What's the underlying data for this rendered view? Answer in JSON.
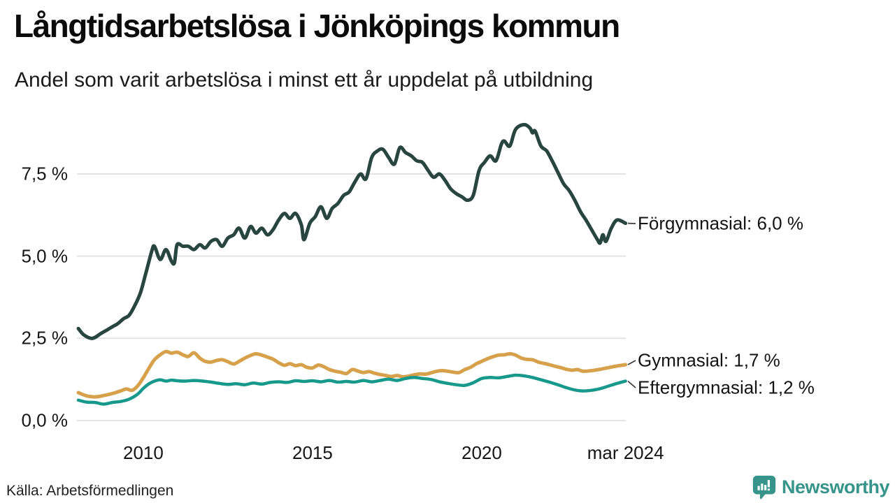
{
  "footer": {
    "brand": "Newsworthy"
  },
  "colors": {
    "grid": "#e4e4e4",
    "text": "#111111",
    "brand_teal": "#37948a",
    "connector": "#3a3a3a"
  },
  "chart_data": {
    "type": "line",
    "title": "Långtidsarbetslösa i Jönköpings kommun",
    "subtitle": "Andel som varit arbetslösa i minst ett år uppdelat på utbildning",
    "source": "Källa: Arbetsförmedlingen",
    "legend_position": "labels-at-line-ends-right",
    "grid": "horizontal",
    "x_axis": {
      "domain": [
        2008.08,
        2024.3
      ],
      "ticks": [
        {
          "label": "2010",
          "year": 2010
        },
        {
          "label": "2015",
          "year": 2015
        },
        {
          "label": "2020",
          "year": 2020
        },
        {
          "label": "mar 2024",
          "year": 2024.25
        }
      ]
    },
    "y_axis": {
      "unit": "%",
      "domain": [
        0,
        9.2
      ],
      "ticks": [
        {
          "label": "0,0 %",
          "value": 0
        },
        {
          "label": "2,5 %",
          "value": 2.5
        },
        {
          "label": "5,0 %",
          "value": 5
        },
        {
          "label": "7,5 %",
          "value": 7.5
        }
      ]
    },
    "series": [
      {
        "id": "forgymnasial",
        "name": "Förgymnasial",
        "end_label": "Förgymnasial: 6,0 %",
        "end_value": "6,0 %",
        "color": "#28453e",
        "points": [
          [
            2008.08,
            2.8
          ],
          [
            2008.25,
            2.6
          ],
          [
            2008.5,
            2.5
          ],
          [
            2008.75,
            2.65
          ],
          [
            2008.92,
            2.75
          ],
          [
            2009.08,
            2.85
          ],
          [
            2009.25,
            2.95
          ],
          [
            2009.42,
            3.1
          ],
          [
            2009.58,
            3.2
          ],
          [
            2009.75,
            3.5
          ],
          [
            2009.92,
            3.9
          ],
          [
            2010.08,
            4.5
          ],
          [
            2010.25,
            5.15
          ],
          [
            2010.33,
            5.3
          ],
          [
            2010.5,
            4.9
          ],
          [
            2010.67,
            5.2
          ],
          [
            2010.83,
            4.85
          ],
          [
            2010.92,
            4.8
          ],
          [
            2011.0,
            5.35
          ],
          [
            2011.17,
            5.3
          ],
          [
            2011.33,
            5.3
          ],
          [
            2011.5,
            5.2
          ],
          [
            2011.67,
            5.35
          ],
          [
            2011.83,
            5.25
          ],
          [
            2012.0,
            5.45
          ],
          [
            2012.17,
            5.5
          ],
          [
            2012.33,
            5.3
          ],
          [
            2012.5,
            5.55
          ],
          [
            2012.67,
            5.65
          ],
          [
            2012.83,
            5.85
          ],
          [
            2013.0,
            5.55
          ],
          [
            2013.17,
            5.9
          ],
          [
            2013.33,
            5.7
          ],
          [
            2013.5,
            5.85
          ],
          [
            2013.67,
            5.65
          ],
          [
            2013.83,
            5.8
          ],
          [
            2014.0,
            6.1
          ],
          [
            2014.17,
            6.3
          ],
          [
            2014.33,
            6.15
          ],
          [
            2014.5,
            6.3
          ],
          [
            2014.67,
            5.95
          ],
          [
            2014.75,
            5.5
          ],
          [
            2014.92,
            6.0
          ],
          [
            2015.08,
            6.2
          ],
          [
            2015.25,
            6.5
          ],
          [
            2015.42,
            6.15
          ],
          [
            2015.58,
            6.45
          ],
          [
            2015.75,
            6.6
          ],
          [
            2015.92,
            6.85
          ],
          [
            2016.08,
            6.95
          ],
          [
            2016.25,
            7.25
          ],
          [
            2016.42,
            7.5
          ],
          [
            2016.58,
            7.35
          ],
          [
            2016.75,
            8.0
          ],
          [
            2016.92,
            8.2
          ],
          [
            2017.08,
            8.25
          ],
          [
            2017.25,
            8.0
          ],
          [
            2017.42,
            7.8
          ],
          [
            2017.58,
            8.3
          ],
          [
            2017.75,
            8.15
          ],
          [
            2017.92,
            8.05
          ],
          [
            2018.08,
            7.9
          ],
          [
            2018.25,
            7.85
          ],
          [
            2018.42,
            7.6
          ],
          [
            2018.58,
            7.4
          ],
          [
            2018.75,
            7.5
          ],
          [
            2018.92,
            7.3
          ],
          [
            2019.08,
            7.05
          ],
          [
            2019.25,
            6.9
          ],
          [
            2019.42,
            6.8
          ],
          [
            2019.58,
            6.7
          ],
          [
            2019.75,
            6.85
          ],
          [
            2019.92,
            7.6
          ],
          [
            2020.08,
            7.85
          ],
          [
            2020.25,
            8.05
          ],
          [
            2020.42,
            7.9
          ],
          [
            2020.58,
            8.4
          ],
          [
            2020.67,
            8.5
          ],
          [
            2020.83,
            8.35
          ],
          [
            2021.0,
            8.85
          ],
          [
            2021.25,
            9.0
          ],
          [
            2021.42,
            8.9
          ],
          [
            2021.5,
            8.75
          ],
          [
            2021.58,
            8.8
          ],
          [
            2021.75,
            8.35
          ],
          [
            2021.92,
            8.2
          ],
          [
            2022.08,
            7.9
          ],
          [
            2022.25,
            7.55
          ],
          [
            2022.42,
            7.2
          ],
          [
            2022.58,
            7.0
          ],
          [
            2022.75,
            6.7
          ],
          [
            2022.92,
            6.35
          ],
          [
            2023.08,
            6.1
          ],
          [
            2023.25,
            5.8
          ],
          [
            2023.42,
            5.5
          ],
          [
            2023.5,
            5.4
          ],
          [
            2023.58,
            5.65
          ],
          [
            2023.67,
            5.45
          ],
          [
            2023.83,
            5.85
          ],
          [
            2024.0,
            6.1
          ],
          [
            2024.25,
            6.0
          ]
        ]
      },
      {
        "id": "gymnasial",
        "name": "Gymnasial",
        "end_label": "Gymnasial: 1,7 %",
        "end_value": "1,7 %",
        "color": "#d7a14c",
        "points": [
          [
            2008.08,
            0.85
          ],
          [
            2008.33,
            0.75
          ],
          [
            2008.58,
            0.72
          ],
          [
            2008.83,
            0.76
          ],
          [
            2009.08,
            0.82
          ],
          [
            2009.33,
            0.9
          ],
          [
            2009.5,
            0.96
          ],
          [
            2009.67,
            0.92
          ],
          [
            2009.83,
            1.05
          ],
          [
            2010.0,
            1.3
          ],
          [
            2010.17,
            1.6
          ],
          [
            2010.33,
            1.85
          ],
          [
            2010.5,
            2.0
          ],
          [
            2010.67,
            2.1
          ],
          [
            2010.83,
            2.05
          ],
          [
            2011.0,
            2.08
          ],
          [
            2011.17,
            2.0
          ],
          [
            2011.33,
            1.95
          ],
          [
            2011.5,
            2.06
          ],
          [
            2011.67,
            1.9
          ],
          [
            2011.83,
            1.8
          ],
          [
            2012.0,
            1.78
          ],
          [
            2012.17,
            1.83
          ],
          [
            2012.33,
            1.85
          ],
          [
            2012.5,
            1.79
          ],
          [
            2012.67,
            1.72
          ],
          [
            2012.83,
            1.8
          ],
          [
            2013.0,
            1.9
          ],
          [
            2013.17,
            1.98
          ],
          [
            2013.33,
            2.03
          ],
          [
            2013.5,
            1.99
          ],
          [
            2013.67,
            1.93
          ],
          [
            2013.83,
            1.87
          ],
          [
            2014.0,
            1.76
          ],
          [
            2014.17,
            1.68
          ],
          [
            2014.33,
            1.73
          ],
          [
            2014.5,
            1.67
          ],
          [
            2014.67,
            1.7
          ],
          [
            2014.83,
            1.62
          ],
          [
            2015.0,
            1.6
          ],
          [
            2015.17,
            1.69
          ],
          [
            2015.33,
            1.64
          ],
          [
            2015.5,
            1.55
          ],
          [
            2015.67,
            1.5
          ],
          [
            2015.83,
            1.47
          ],
          [
            2016.0,
            1.43
          ],
          [
            2016.17,
            1.55
          ],
          [
            2016.33,
            1.51
          ],
          [
            2016.5,
            1.46
          ],
          [
            2016.67,
            1.49
          ],
          [
            2016.83,
            1.44
          ],
          [
            2017.0,
            1.4
          ],
          [
            2017.17,
            1.37
          ],
          [
            2017.33,
            1.34
          ],
          [
            2017.5,
            1.37
          ],
          [
            2017.67,
            1.33
          ],
          [
            2017.83,
            1.35
          ],
          [
            2018.0,
            1.39
          ],
          [
            2018.17,
            1.42
          ],
          [
            2018.33,
            1.41
          ],
          [
            2018.5,
            1.45
          ],
          [
            2018.67,
            1.5
          ],
          [
            2018.83,
            1.52
          ],
          [
            2019.0,
            1.5
          ],
          [
            2019.17,
            1.47
          ],
          [
            2019.33,
            1.46
          ],
          [
            2019.5,
            1.55
          ],
          [
            2019.67,
            1.62
          ],
          [
            2019.83,
            1.72
          ],
          [
            2020.0,
            1.8
          ],
          [
            2020.17,
            1.88
          ],
          [
            2020.33,
            1.94
          ],
          [
            2020.5,
            1.99
          ],
          [
            2020.67,
            2.0
          ],
          [
            2020.83,
            2.03
          ],
          [
            2021.0,
            1.99
          ],
          [
            2021.17,
            1.9
          ],
          [
            2021.33,
            1.86
          ],
          [
            2021.5,
            1.85
          ],
          [
            2021.67,
            1.78
          ],
          [
            2021.83,
            1.74
          ],
          [
            2022.0,
            1.7
          ],
          [
            2022.17,
            1.65
          ],
          [
            2022.33,
            1.61
          ],
          [
            2022.5,
            1.56
          ],
          [
            2022.67,
            1.53
          ],
          [
            2022.83,
            1.55
          ],
          [
            2023.0,
            1.5
          ],
          [
            2023.25,
            1.52
          ],
          [
            2023.5,
            1.56
          ],
          [
            2023.75,
            1.61
          ],
          [
            2024.0,
            1.66
          ],
          [
            2024.25,
            1.7
          ]
        ]
      },
      {
        "id": "eftergymnasial",
        "name": "Eftergymnasial",
        "end_label": "Eftergymnasial: 1,2 %",
        "end_value": "1,2 %",
        "color": "#16998b",
        "points": [
          [
            2008.08,
            0.62
          ],
          [
            2008.33,
            0.56
          ],
          [
            2008.58,
            0.55
          ],
          [
            2008.83,
            0.5
          ],
          [
            2009.08,
            0.55
          ],
          [
            2009.33,
            0.58
          ],
          [
            2009.58,
            0.65
          ],
          [
            2009.83,
            0.8
          ],
          [
            2010.0,
            0.98
          ],
          [
            2010.17,
            1.12
          ],
          [
            2010.33,
            1.2
          ],
          [
            2010.5,
            1.24
          ],
          [
            2010.67,
            1.2
          ],
          [
            2010.83,
            1.23
          ],
          [
            2011.0,
            1.21
          ],
          [
            2011.25,
            1.2
          ],
          [
            2011.5,
            1.22
          ],
          [
            2011.75,
            1.2
          ],
          [
            2012.0,
            1.17
          ],
          [
            2012.25,
            1.13
          ],
          [
            2012.5,
            1.1
          ],
          [
            2012.75,
            1.12
          ],
          [
            2013.0,
            1.09
          ],
          [
            2013.25,
            1.14
          ],
          [
            2013.5,
            1.11
          ],
          [
            2013.75,
            1.16
          ],
          [
            2014.0,
            1.18
          ],
          [
            2014.25,
            1.16
          ],
          [
            2014.5,
            1.21
          ],
          [
            2014.75,
            1.19
          ],
          [
            2015.0,
            1.21
          ],
          [
            2015.25,
            1.18
          ],
          [
            2015.5,
            1.22
          ],
          [
            2015.75,
            1.17
          ],
          [
            2016.0,
            1.19
          ],
          [
            2016.25,
            1.17
          ],
          [
            2016.5,
            1.22
          ],
          [
            2016.75,
            1.18
          ],
          [
            2017.0,
            1.22
          ],
          [
            2017.25,
            1.26
          ],
          [
            2017.5,
            1.22
          ],
          [
            2017.75,
            1.28
          ],
          [
            2018.0,
            1.31
          ],
          [
            2018.25,
            1.28
          ],
          [
            2018.5,
            1.25
          ],
          [
            2018.75,
            1.18
          ],
          [
            2019.0,
            1.13
          ],
          [
            2019.25,
            1.09
          ],
          [
            2019.5,
            1.07
          ],
          [
            2019.75,
            1.15
          ],
          [
            2020.0,
            1.28
          ],
          [
            2020.25,
            1.31
          ],
          [
            2020.5,
            1.3
          ],
          [
            2020.75,
            1.34
          ],
          [
            2021.0,
            1.38
          ],
          [
            2021.25,
            1.36
          ],
          [
            2021.5,
            1.31
          ],
          [
            2021.75,
            1.24
          ],
          [
            2022.0,
            1.17
          ],
          [
            2022.25,
            1.09
          ],
          [
            2022.5,
            1.0
          ],
          [
            2022.75,
            0.93
          ],
          [
            2023.0,
            0.9
          ],
          [
            2023.25,
            0.92
          ],
          [
            2023.5,
            0.97
          ],
          [
            2023.75,
            1.05
          ],
          [
            2024.0,
            1.13
          ],
          [
            2024.25,
            1.2
          ]
        ]
      }
    ]
  }
}
